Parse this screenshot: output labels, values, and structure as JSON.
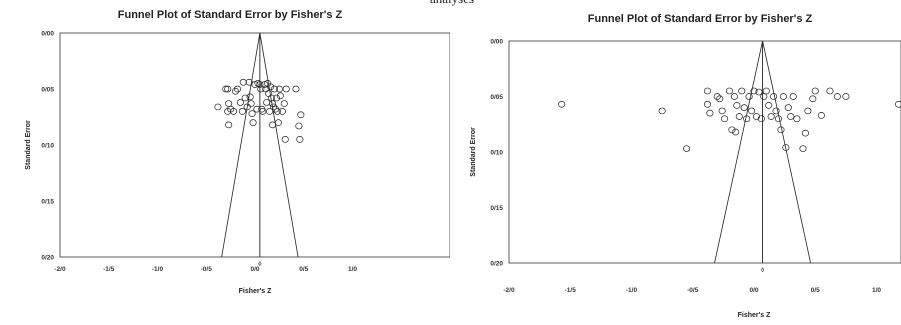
{
  "page": {
    "top_fragment": "analyses"
  },
  "chart_data": [
    {
      "type": "scatter",
      "title": "Funnel Plot of Standard Error by Fisher's Z",
      "xlabel": "Fisher's Z",
      "ylabel": "Standard Error",
      "xlim": [
        -2.0,
        2.0
      ],
      "ylim": [
        0.2,
        0.0
      ],
      "y_axis_inverted": true,
      "x_ticks": [
        "-2/0",
        "-1/5",
        "-1/0",
        "-0/5",
        "0/0",
        "0/5",
        "1/0"
      ],
      "y_ticks": [
        "0/00",
        "0/05",
        "0/10",
        "0/15",
        "0/20"
      ],
      "summary_marker_label": "◊",
      "summary_effect": 0.05,
      "grid": false,
      "legend": "none",
      "points": [
        {
          "x": -0.38,
          "y": 0.066
        },
        {
          "x": -0.3,
          "y": 0.05
        },
        {
          "x": -0.28,
          "y": 0.05
        },
        {
          "x": -0.27,
          "y": 0.063
        },
        {
          "x": -0.25,
          "y": 0.068
        },
        {
          "x": -0.22,
          "y": 0.07
        },
        {
          "x": -0.2,
          "y": 0.052
        },
        {
          "x": -0.18,
          "y": 0.05
        },
        {
          "x": -0.15,
          "y": 0.062
        },
        {
          "x": -0.13,
          "y": 0.07
        },
        {
          "x": -0.12,
          "y": 0.044
        },
        {
          "x": -0.1,
          "y": 0.058
        },
        {
          "x": -0.08,
          "y": 0.066
        },
        {
          "x": -0.06,
          "y": 0.044
        },
        {
          "x": -0.05,
          "y": 0.057
        },
        {
          "x": -0.04,
          "y": 0.063
        },
        {
          "x": -0.03,
          "y": 0.072
        },
        {
          "x": -0.02,
          "y": 0.08
        },
        {
          "x": 0.0,
          "y": 0.046
        },
        {
          "x": 0.02,
          "y": 0.068
        },
        {
          "x": 0.03,
          "y": 0.045
        },
        {
          "x": 0.05,
          "y": 0.046
        },
        {
          "x": 0.06,
          "y": 0.05
        },
        {
          "x": 0.07,
          "y": 0.068
        },
        {
          "x": 0.08,
          "y": 0.07
        },
        {
          "x": 0.1,
          "y": 0.046
        },
        {
          "x": 0.11,
          "y": 0.05
        },
        {
          "x": 0.12,
          "y": 0.062
        },
        {
          "x": 0.13,
          "y": 0.045
        },
        {
          "x": 0.14,
          "y": 0.054
        },
        {
          "x": 0.15,
          "y": 0.07
        },
        {
          "x": 0.16,
          "y": 0.048
        },
        {
          "x": 0.17,
          "y": 0.058
        },
        {
          "x": 0.18,
          "y": 0.063
        },
        {
          "x": 0.19,
          "y": 0.066
        },
        {
          "x": 0.2,
          "y": 0.05
        },
        {
          "x": 0.21,
          "y": 0.068
        },
        {
          "x": 0.22,
          "y": 0.058
        },
        {
          "x": 0.23,
          "y": 0.07
        },
        {
          "x": 0.24,
          "y": 0.08
        },
        {
          "x": 0.25,
          "y": 0.05
        },
        {
          "x": 0.26,
          "y": 0.056
        },
        {
          "x": 0.28,
          "y": 0.07
        },
        {
          "x": 0.3,
          "y": 0.063
        },
        {
          "x": 0.31,
          "y": 0.095
        },
        {
          "x": 0.32,
          "y": 0.05
        },
        {
          "x": -0.27,
          "y": 0.082
        },
        {
          "x": -0.28,
          "y": 0.07
        },
        {
          "x": 0.18,
          "y": 0.082
        },
        {
          "x": 0.42,
          "y": 0.05
        },
        {
          "x": 0.45,
          "y": 0.083
        },
        {
          "x": 0.47,
          "y": 0.073
        },
        {
          "x": 0.46,
          "y": 0.095
        }
      ]
    },
    {
      "type": "scatter",
      "title": "Funnel Plot of Standard Error by Fisher's Z",
      "xlabel": "Fisher's Z",
      "ylabel": "Standard Error",
      "xlim": [
        -2.0,
        1.2
      ],
      "ylim": [
        0.2,
        0.0
      ],
      "y_axis_inverted": true,
      "x_ticks": [
        "-2/0",
        "-1/5",
        "-1/0",
        "-0/5",
        "0/0",
        "0/5",
        "1/0"
      ],
      "y_ticks": [
        "0/00",
        "0/05",
        "0/10",
        "0/15",
        "0/20"
      ],
      "summary_marker_label": "◊",
      "summary_effect": 0.07,
      "grid": false,
      "legend": "none",
      "points": [
        {
          "x": -1.57,
          "y": 0.057
        },
        {
          "x": -0.75,
          "y": 0.063
        },
        {
          "x": -0.55,
          "y": 0.097
        },
        {
          "x": -0.38,
          "y": 0.045
        },
        {
          "x": -0.38,
          "y": 0.057
        },
        {
          "x": -0.36,
          "y": 0.065
        },
        {
          "x": -0.3,
          "y": 0.05
        },
        {
          "x": -0.28,
          "y": 0.052
        },
        {
          "x": -0.26,
          "y": 0.063
        },
        {
          "x": -0.24,
          "y": 0.07
        },
        {
          "x": -0.2,
          "y": 0.045
        },
        {
          "x": -0.18,
          "y": 0.08
        },
        {
          "x": -0.16,
          "y": 0.05
        },
        {
          "x": -0.15,
          "y": 0.082
        },
        {
          "x": -0.14,
          "y": 0.058
        },
        {
          "x": -0.12,
          "y": 0.068
        },
        {
          "x": -0.1,
          "y": 0.045
        },
        {
          "x": -0.08,
          "y": 0.06
        },
        {
          "x": -0.06,
          "y": 0.07
        },
        {
          "x": -0.04,
          "y": 0.05
        },
        {
          "x": -0.02,
          "y": 0.063
        },
        {
          "x": 0.0,
          "y": 0.045
        },
        {
          "x": 0.02,
          "y": 0.068
        },
        {
          "x": 0.04,
          "y": 0.046
        },
        {
          "x": 0.06,
          "y": 0.07
        },
        {
          "x": 0.08,
          "y": 0.05
        },
        {
          "x": 0.1,
          "y": 0.045
        },
        {
          "x": 0.12,
          "y": 0.058
        },
        {
          "x": 0.14,
          "y": 0.068
        },
        {
          "x": 0.16,
          "y": 0.05
        },
        {
          "x": 0.18,
          "y": 0.063
        },
        {
          "x": 0.2,
          "y": 0.07
        },
        {
          "x": 0.22,
          "y": 0.08
        },
        {
          "x": 0.24,
          "y": 0.05
        },
        {
          "x": 0.26,
          "y": 0.096
        },
        {
          "x": 0.28,
          "y": 0.06
        },
        {
          "x": 0.3,
          "y": 0.068
        },
        {
          "x": 0.32,
          "y": 0.05
        },
        {
          "x": 0.35,
          "y": 0.07
        },
        {
          "x": 0.4,
          "y": 0.097
        },
        {
          "x": 0.42,
          "y": 0.083
        },
        {
          "x": 0.44,
          "y": 0.063
        },
        {
          "x": 0.48,
          "y": 0.052
        },
        {
          "x": 0.5,
          "y": 0.045
        },
        {
          "x": 0.55,
          "y": 0.067
        },
        {
          "x": 0.62,
          "y": 0.045
        },
        {
          "x": 0.68,
          "y": 0.05
        },
        {
          "x": 0.75,
          "y": 0.05
        },
        {
          "x": 1.18,
          "y": 0.057
        }
      ]
    }
  ]
}
